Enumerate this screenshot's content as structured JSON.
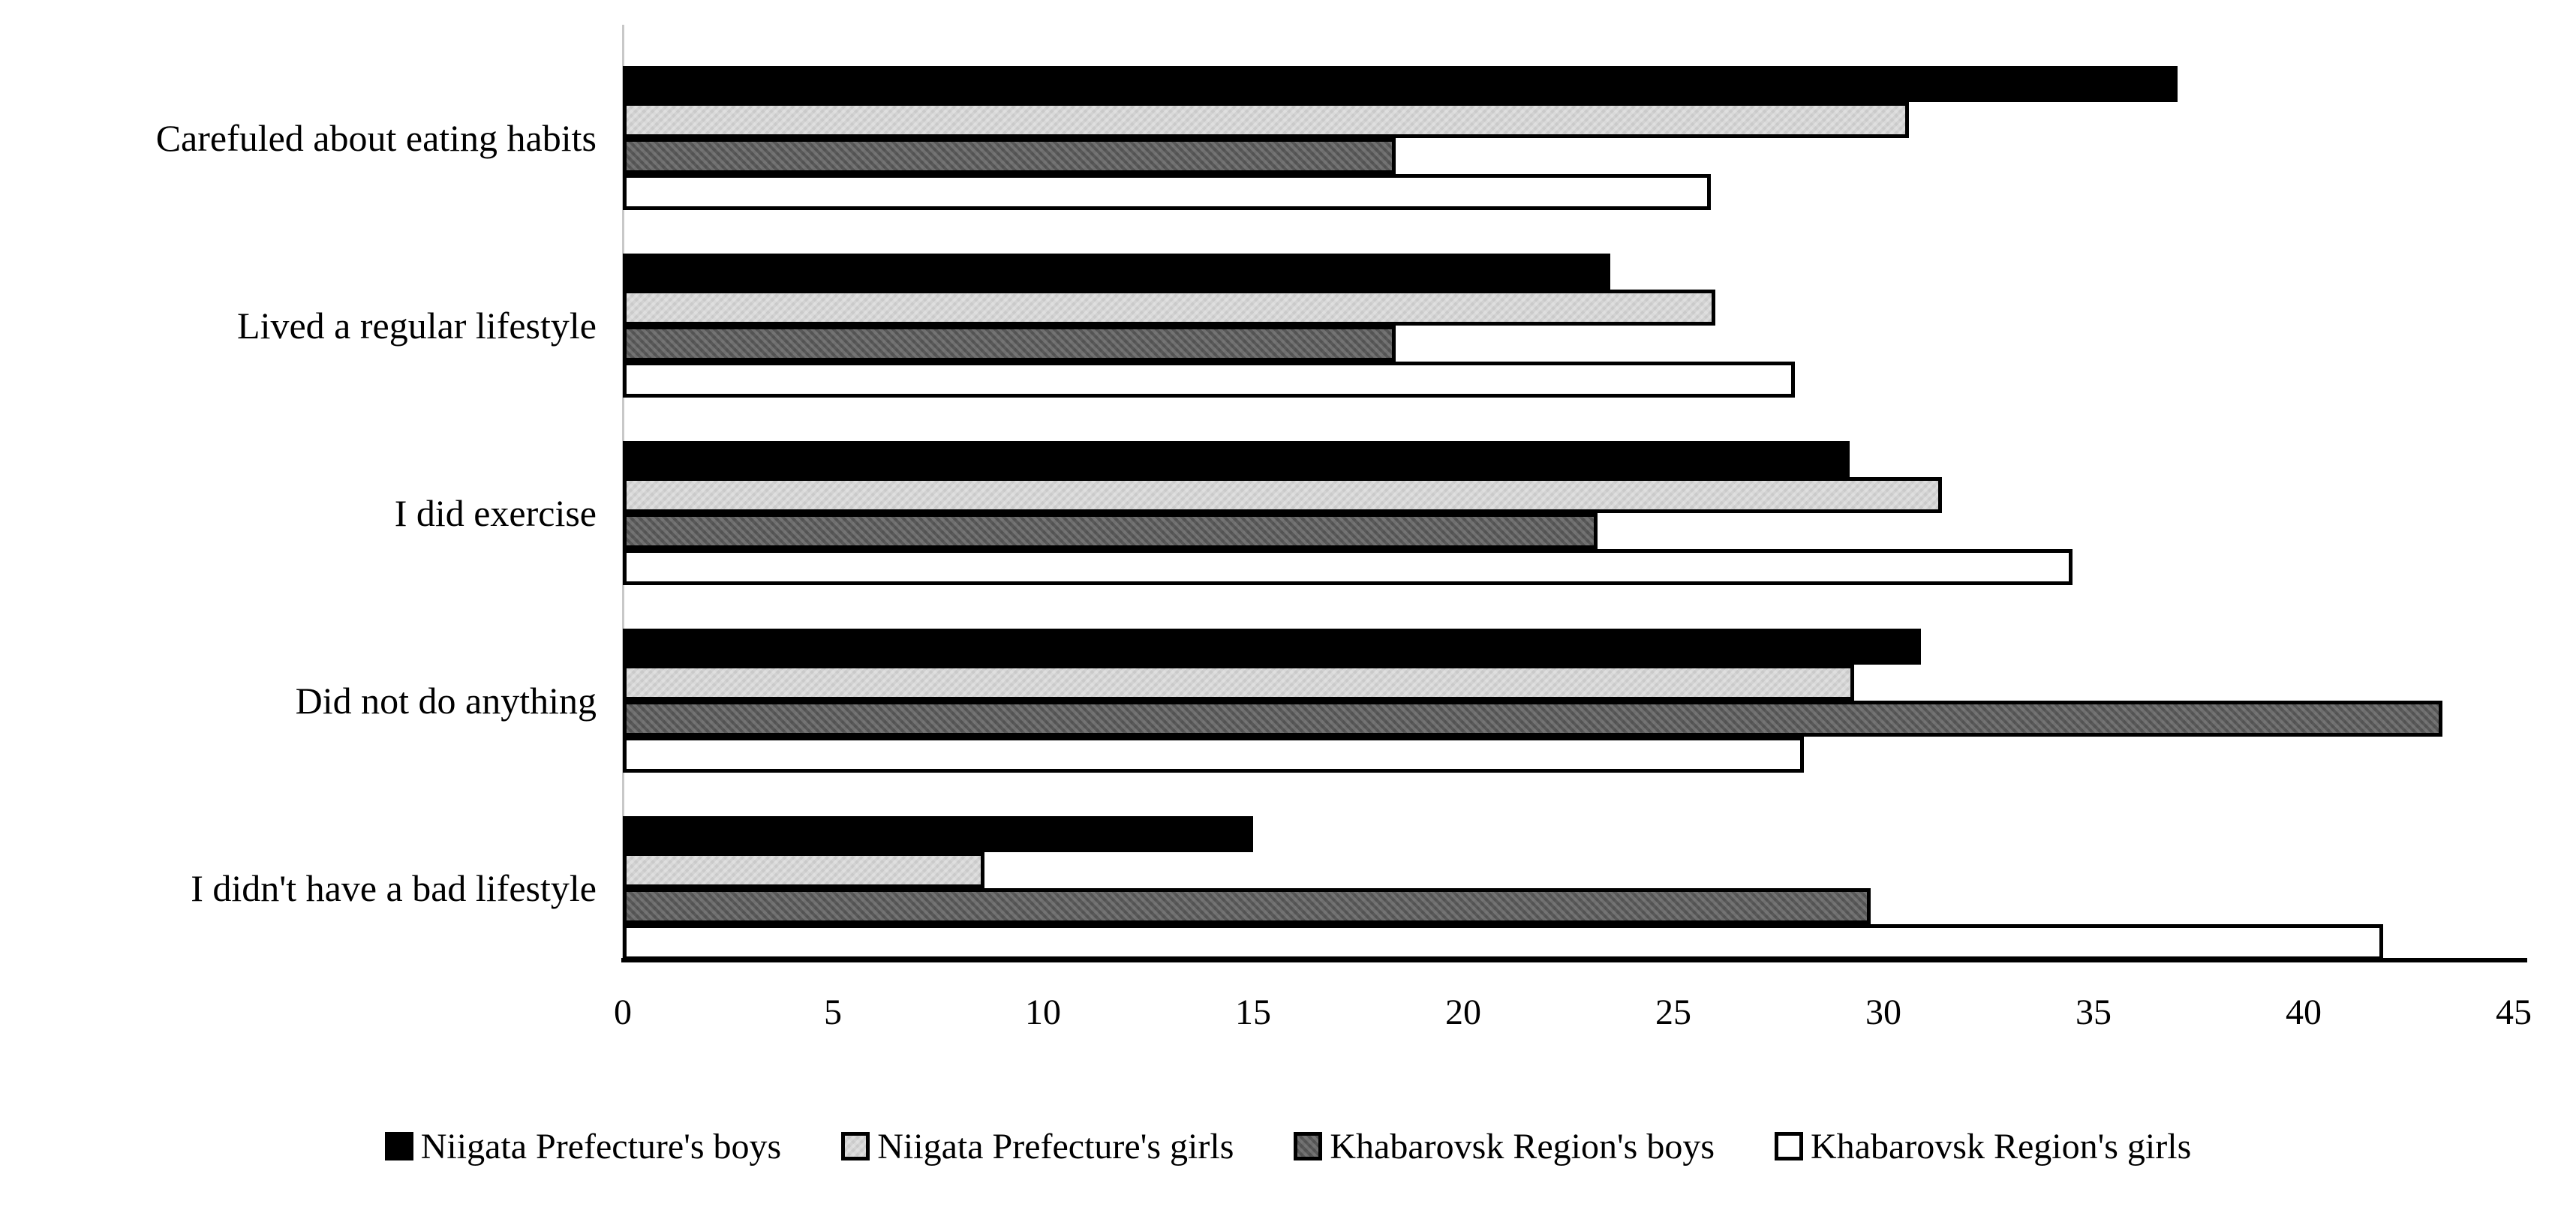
{
  "chart_data": {
    "type": "bar",
    "orientation": "horizontal",
    "title": "",
    "xlabel": "",
    "ylabel": "",
    "categories": [
      "Carefuled about eating habits",
      "Lived a regular lifestyle",
      "I did exercise",
      "Did not do anything",
      "I didn't have a bad lifestyle"
    ],
    "series": [
      {
        "name": "Niigata Prefecture's boys",
        "color": "#000000",
        "pattern": false,
        "values": [
          37.0,
          23.5,
          29.2,
          30.9,
          15.0
        ]
      },
      {
        "name": "Niigata Prefecture's girls",
        "color": "#d9d9d9",
        "pattern": true,
        "values": [
          30.6,
          26.0,
          31.4,
          29.3,
          8.6
        ]
      },
      {
        "name": "Khabarovsk Region's boys",
        "color": "#595959",
        "pattern": true,
        "values": [
          18.4,
          18.4,
          23.2,
          43.3,
          29.7
        ]
      },
      {
        "name": "Khabarovsk Region's girls",
        "color": "#ffffff",
        "pattern": false,
        "values": [
          25.9,
          27.9,
          34.5,
          28.1,
          41.9
        ]
      }
    ],
    "xlim": [
      0,
      45
    ],
    "x_ticks": [
      0,
      5,
      10,
      15,
      20,
      25,
      30,
      35,
      40,
      45
    ],
    "grid": false,
    "legend_position": "bottom",
    "bar_border_color": "#000000",
    "axis_line_color": "#000000",
    "zero_gridline_color": "#c8c8c8"
  }
}
